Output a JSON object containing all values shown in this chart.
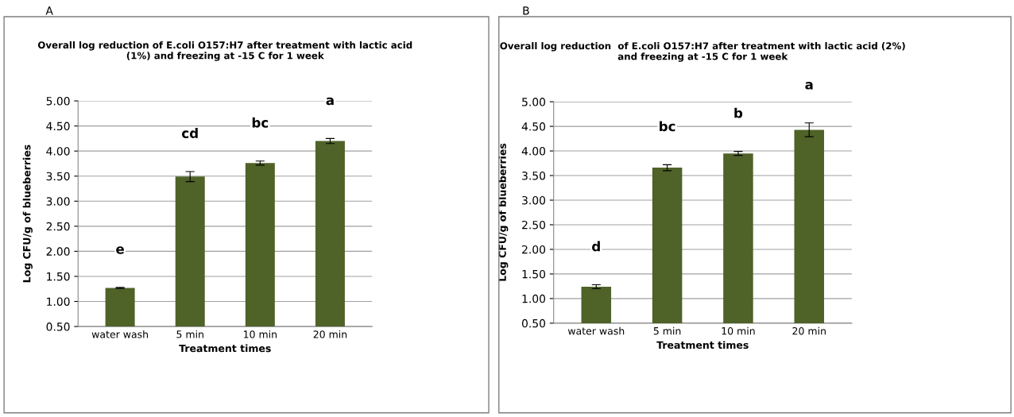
{
  "chart_data": [
    {
      "type": "bar",
      "title": "Overall log reduction of E.coli O157:H7 after treatment with lactic acid\n(1%) and freezing at -15 C for 1 week",
      "xlabel": "Treatment times",
      "ylabel": "Log CFU/g of blueberries",
      "categories": [
        "water wash",
        "5 min",
        "10 min",
        "20 min"
      ],
      "values": [
        1.27,
        3.49,
        3.76,
        4.2
      ],
      "errors": [
        0.01,
        0.1,
        0.04,
        0.05
      ],
      "color": "#4f6228",
      "ylim": [
        0.5,
        5.0
      ],
      "yticks": [
        {
          "value": 0.5,
          "label": "0.50"
        },
        {
          "value": 1.0,
          "label": "1.00"
        },
        {
          "value": 1.5,
          "label": "1.50"
        },
        {
          "value": 2.0,
          "label": "2.00"
        },
        {
          "value": 2.5,
          "label": "2.50"
        },
        {
          "value": 3.0,
          "label": "3.00"
        },
        {
          "value": 3.5,
          "label": "3.50"
        },
        {
          "value": 4.0,
          "label": "4.00"
        },
        {
          "value": 4.5,
          "label": "4.50"
        },
        {
          "value": 5.0,
          "label": "5.00"
        }
      ],
      "grid": "y",
      "annotations": [
        "A",
        "e",
        "cd",
        "bc",
        "a"
      ]
    },
    {
      "type": "bar",
      "title": "Overall log reduction  of E.coli O157:H7 after treatment with lactic acid (2%)\nand freezing at -15 C for 1 week",
      "xlabel": "Treatment times",
      "ylabel": "Log CFU/g of blueberries",
      "categories": [
        "water wash",
        "5 min",
        "10 min",
        "20 min"
      ],
      "values": [
        1.24,
        3.66,
        3.95,
        4.43
      ],
      "errors": [
        0.04,
        0.06,
        0.04,
        0.14
      ],
      "color": "#4f6228",
      "ylim": [
        0.5,
        5.0
      ],
      "yticks": [
        {
          "value": 0.5,
          "label": "0.50"
        },
        {
          "value": 1.0,
          "label": "1.00"
        },
        {
          "value": 1.5,
          "label": "1.50"
        },
        {
          "value": 2.0,
          "label": "2.00"
        },
        {
          "value": 2.5,
          "label": "2.50"
        },
        {
          "value": 3.0,
          "label": "3.00"
        },
        {
          "value": 3.5,
          "label": "3.50"
        },
        {
          "value": 4.0,
          "label": "4.00"
        },
        {
          "value": 4.5,
          "label": "4.50"
        },
        {
          "value": 5.0,
          "label": "5.00"
        }
      ],
      "grid": "y",
      "annotations": [
        "B",
        "d",
        "bc",
        "b",
        "a"
      ]
    }
  ]
}
